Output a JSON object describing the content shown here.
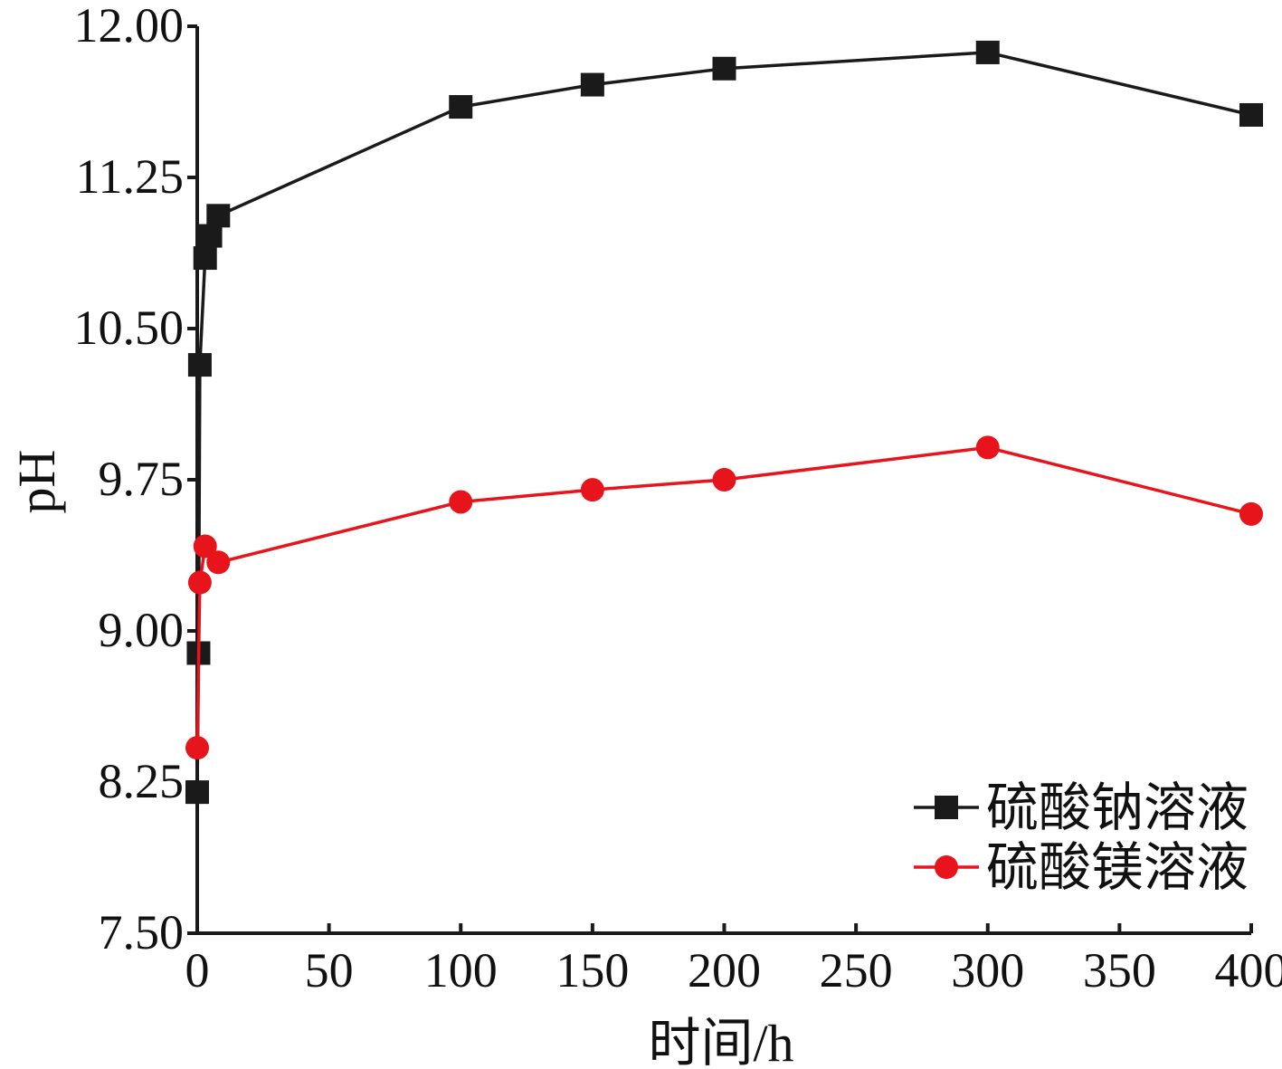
{
  "chart_data": {
    "type": "line",
    "xlabel": "时间/h",
    "ylabel": "pH",
    "xlim": [
      0,
      400
    ],
    "ylim": [
      7.5,
      12.0
    ],
    "x_ticks": [
      "0",
      "50",
      "100",
      "150",
      "200",
      "250",
      "300",
      "350",
      "400"
    ],
    "y_ticks": [
      "7.50",
      "8.25",
      "9.00",
      "9.75",
      "10.50",
      "11.25",
      "12.00"
    ],
    "grid": false,
    "legend_position": "bottom-right",
    "series": [
      {
        "name": "硫酸钠溶液",
        "color": "#1a1a1a",
        "marker": "square",
        "x": [
          0,
          0.5,
          1,
          3,
          5,
          8,
          100,
          150,
          200,
          300,
          400
        ],
        "y": [
          8.2,
          8.89,
          10.32,
          10.85,
          10.96,
          11.06,
          11.6,
          11.71,
          11.79,
          11.87,
          11.56
        ]
      },
      {
        "name": "硫酸镁溶液",
        "color": "#e8141b",
        "marker": "circle",
        "x": [
          0,
          1,
          3,
          8,
          100,
          150,
          200,
          300,
          400
        ],
        "y": [
          8.42,
          9.24,
          9.42,
          9.34,
          9.64,
          9.7,
          9.75,
          9.91,
          9.58
        ]
      }
    ]
  }
}
